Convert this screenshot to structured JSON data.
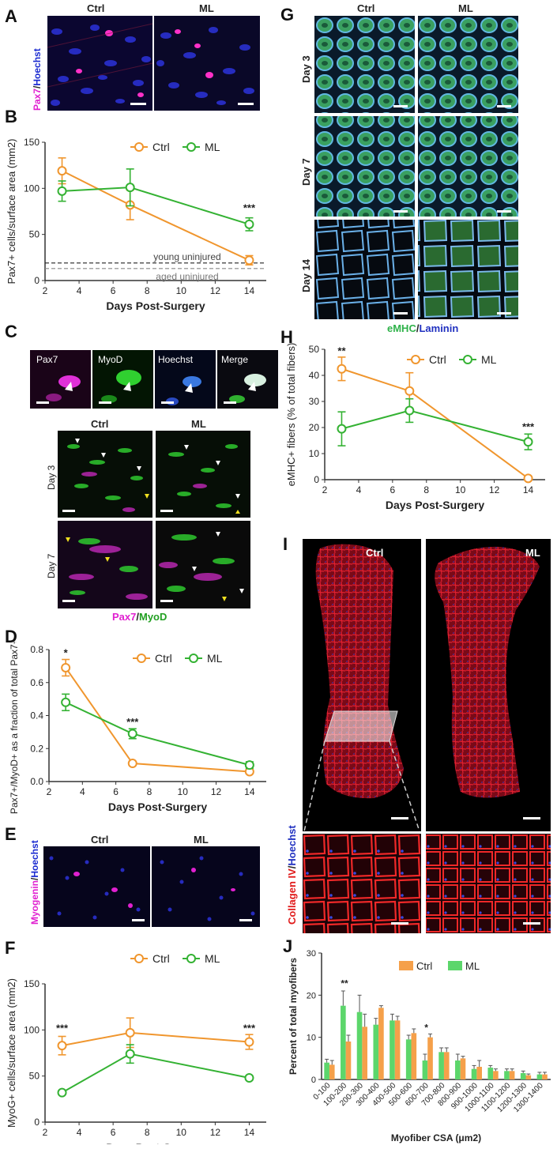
{
  "panels": {
    "A": {
      "letter": "A",
      "cols": [
        "Ctrl",
        "ML"
      ],
      "stain_a": "Pax7",
      "stain_sep": "/",
      "stain_b": "Hoechst"
    },
    "C": {
      "letter": "C",
      "channels": [
        "Pax7",
        "MyoD",
        "Hoechst",
        "Merge"
      ],
      "cols": [
        "Ctrl",
        "ML"
      ],
      "rows": [
        "Day 3",
        "Day 7"
      ],
      "stain_a": "Pax7",
      "stain_sep": "/",
      "stain_b": "MyoD"
    },
    "E": {
      "letter": "E",
      "cols": [
        "Ctrl",
        "ML"
      ],
      "stain_a": "Myogenin",
      "stain_sep": "/",
      "stain_b": "Hoechst"
    },
    "G": {
      "letter": "G",
      "cols": [
        "Ctrl",
        "ML"
      ],
      "rows": [
        "Day 3",
        "Day 7",
        "Day 14"
      ],
      "stain_a": "eMHC",
      "stain_sep": "/",
      "stain_b": "Laminin"
    },
    "I": {
      "letter": "I",
      "cols": [
        "Ctrl",
        "ML"
      ],
      "stain_a": "Collagen IV",
      "stain_sep": "/",
      "stain_b": "Hoechst"
    }
  },
  "colors": {
    "ctrl": "#f0962e",
    "ml": "#34b233",
    "ctrl_bar": "#f5a04a",
    "ml_bar": "#5cd66b",
    "pax7": "#e020d0",
    "myod": "#22c022",
    "hoechst": "#1a2ad0",
    "emhc": "#2fb24a",
    "laminin": "#2030c0",
    "collagen": "#e01818"
  },
  "chart_data": [
    {
      "letter": "B",
      "type": "line",
      "xlabel": "Days Post-Surgery",
      "ylabel": "Pax7+ cells/surface area (mm2)",
      "xlim": [
        2,
        15
      ],
      "ylim": [
        0,
        150
      ],
      "xticks": [
        2,
        4,
        6,
        8,
        10,
        12,
        14
      ],
      "yticks": [
        0,
        50,
        100,
        150
      ],
      "legend": [
        "Ctrl",
        "ML"
      ],
      "series": [
        {
          "name": "Ctrl",
          "x": [
            3,
            7,
            14
          ],
          "y": [
            119,
            82,
            22
          ],
          "err": [
            14,
            16,
            5
          ]
        },
        {
          "name": "ML",
          "x": [
            3,
            7,
            14
          ],
          "y": [
            97,
            101,
            61
          ],
          "err": [
            11,
            20,
            7
          ]
        }
      ],
      "reflines": [
        {
          "label": "young uninjured",
          "y": 19
        },
        {
          "label": "aged uninjured",
          "y": 13
        }
      ],
      "annotations": [
        {
          "text": "***",
          "x": 14,
          "y": 75
        }
      ]
    },
    {
      "letter": "D",
      "type": "line",
      "xlabel": "Days Post-Surgery",
      "ylabel": "Pax7+/MyoD+ as a fraction of total Pax7+ cells",
      "xlim": [
        2,
        15
      ],
      "ylim": [
        0,
        0.8
      ],
      "xticks": [
        2,
        4,
        6,
        8,
        10,
        12,
        14
      ],
      "yticks": [
        0.0,
        0.2,
        0.4,
        0.6,
        0.8
      ],
      "legend": [
        "Ctrl",
        "ML"
      ],
      "series": [
        {
          "name": "Ctrl",
          "x": [
            3,
            7,
            14
          ],
          "y": [
            0.69,
            0.11,
            0.06
          ],
          "err": [
            0.05,
            0.01,
            0.01
          ]
        },
        {
          "name": "ML",
          "x": [
            3,
            7,
            14
          ],
          "y": [
            0.48,
            0.29,
            0.1
          ],
          "err": [
            0.05,
            0.03,
            0.02
          ]
        }
      ],
      "annotations": [
        {
          "text": "*",
          "x": 3,
          "y": 0.76
        },
        {
          "text": "***",
          "x": 7,
          "y": 0.34
        }
      ]
    },
    {
      "letter": "F",
      "type": "line",
      "xlabel": "Days Post-Surgery",
      "ylabel": "MyoG+ cells/surface area (mm2)",
      "xlim": [
        2,
        15
      ],
      "ylim": [
        0,
        150
      ],
      "xticks": [
        2,
        4,
        6,
        8,
        10,
        12,
        14
      ],
      "yticks": [
        0,
        50,
        100,
        150
      ],
      "legend": [
        "Ctrl",
        "ML"
      ],
      "series": [
        {
          "name": "Ctrl",
          "x": [
            3,
            7,
            14
          ],
          "y": [
            83,
            97,
            87
          ],
          "err": [
            10,
            16,
            8
          ]
        },
        {
          "name": "ML",
          "x": [
            3,
            7,
            14
          ],
          "y": [
            32,
            74,
            48
          ],
          "err": [
            2,
            10,
            2
          ]
        }
      ],
      "annotations": [
        {
          "text": "***",
          "x": 3,
          "y": 98
        },
        {
          "text": "***",
          "x": 14,
          "y": 98
        }
      ]
    },
    {
      "letter": "H",
      "type": "line",
      "xlabel": "Days Post-Surgery",
      "ylabel": "eMHC+ fibers (% of total fibers)",
      "xlim": [
        2,
        15
      ],
      "ylim": [
        0,
        50
      ],
      "xticks": [
        2,
        4,
        6,
        8,
        10,
        12,
        14
      ],
      "yticks": [
        0,
        10,
        20,
        30,
        40,
        50
      ],
      "legend": [
        "Ctrl",
        "ML"
      ],
      "series": [
        {
          "name": "Ctrl",
          "x": [
            3,
            7,
            14
          ],
          "y": [
            42.5,
            34,
            0.5
          ],
          "err": [
            4.5,
            7,
            0.3
          ]
        },
        {
          "name": "ML",
          "x": [
            3,
            7,
            14
          ],
          "y": [
            19.5,
            26.5,
            14.5
          ],
          "err": [
            6.5,
            4.5,
            3
          ]
        }
      ],
      "annotations": [
        {
          "text": "**",
          "x": 3,
          "y": 48
        },
        {
          "text": "***",
          "x": 14,
          "y": 19
        }
      ]
    },
    {
      "letter": "J",
      "type": "bar",
      "xlabel": "Myofiber CSA (μm2)",
      "ylabel": "Percent of total myofibers",
      "ylim": [
        0,
        30
      ],
      "yticks": [
        0,
        10,
        20,
        30
      ],
      "legend": [
        "Ctrl",
        "ML"
      ],
      "categories": [
        "0-100",
        "100-200",
        "200-300",
        "300-400",
        "400-500",
        "500-600",
        "600-700",
        "700-800",
        "800-900",
        "900-1000",
        "1000-1100",
        "1100-1200",
        "1200-1300",
        "1300-1400"
      ],
      "series": [
        {
          "name": "ML",
          "values": [
            4,
            17.5,
            16,
            13,
            14,
            9.5,
            4.5,
            6.5,
            4.5,
            2.5,
            2.8,
            2,
            1.5,
            1.2
          ],
          "err": [
            0.8,
            3.5,
            4,
            1.5,
            1.5,
            1,
            1.5,
            1,
            1.5,
            0.8,
            0.5,
            0.5,
            0.5,
            0.5
          ]
        },
        {
          "name": "Ctrl",
          "values": [
            3.5,
            9,
            12.5,
            17,
            14,
            11,
            10,
            6.5,
            5,
            3,
            2,
            2,
            1,
            1.2
          ],
          "err": [
            1,
            1.5,
            3,
            0.5,
            1,
            1,
            0.8,
            1,
            0.5,
            1.5,
            0.5,
            0.5,
            0.3,
            0.5
          ]
        }
      ],
      "annotations": [
        {
          "text": "**",
          "category": "100-200",
          "y": 22
        },
        {
          "text": "*",
          "category": "600-700",
          "y": 11.5
        }
      ]
    }
  ]
}
